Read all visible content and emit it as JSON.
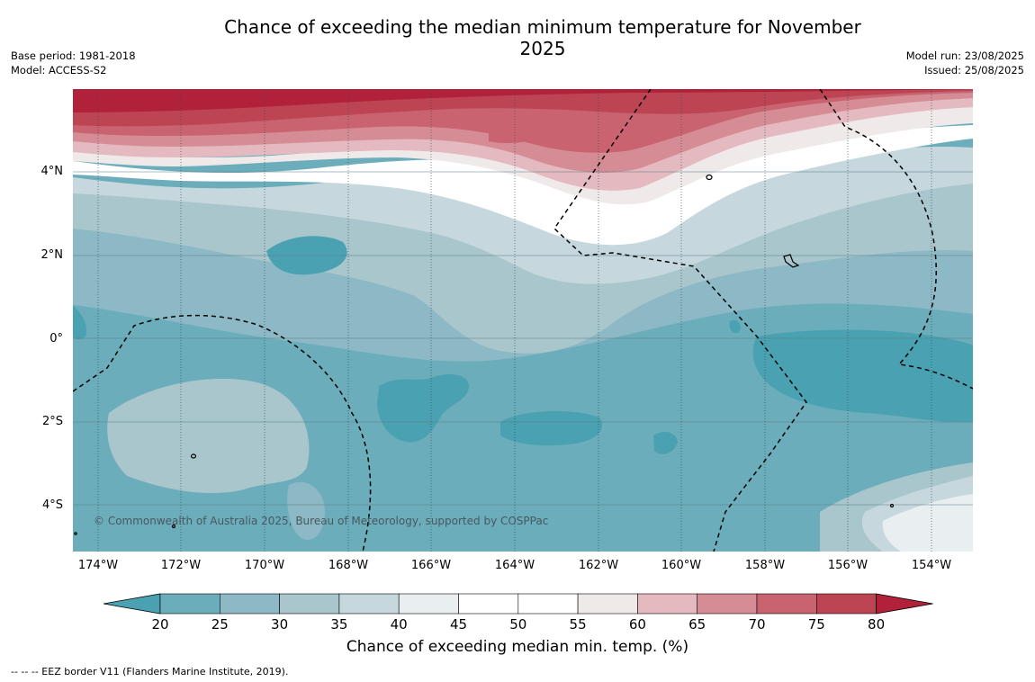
{
  "title": "Chance of exceeding the median minimum temperature for November 2025",
  "meta_left": {
    "base_period": "Base period: 1981-2018",
    "model": "Model: ACCESS-S2"
  },
  "meta_right": {
    "model_run": "Model run: 23/08/2025",
    "issued": "Issued: 25/08/2025"
  },
  "lat_labels": [
    "4°N",
    "2°N",
    "0°",
    "2°S",
    "4°S"
  ],
  "lon_labels": [
    "174°W",
    "172°W",
    "170°W",
    "168°W",
    "166°W",
    "164°W",
    "162°W",
    "160°W",
    "158°W",
    "156°W",
    "154°W"
  ],
  "copyright": "© Commonwealth of Australia 2025, Bureau of Meteorology, supported by COSPPac",
  "colorbar": {
    "ticks": [
      "20",
      "25",
      "30",
      "35",
      "40",
      "45",
      "50",
      "55",
      "60",
      "65",
      "70",
      "75",
      "80"
    ],
    "colors": [
      "#4aa1b2",
      "#6cadbb",
      "#8db8c5",
      "#a9c6cc",
      "#c6d8dd",
      "#e9eff1",
      "#ffffff",
      "#ffffff",
      "#efe9ea",
      "#e4b9bf",
      "#d68c95",
      "#c9636f",
      "#bd4453",
      "#b2213a"
    ],
    "label": "Chance of exceeding median min. temp. (%)"
  },
  "footer": "-- -- -- EEZ border V11 (Flanders Marine Institute, 2019)."
}
